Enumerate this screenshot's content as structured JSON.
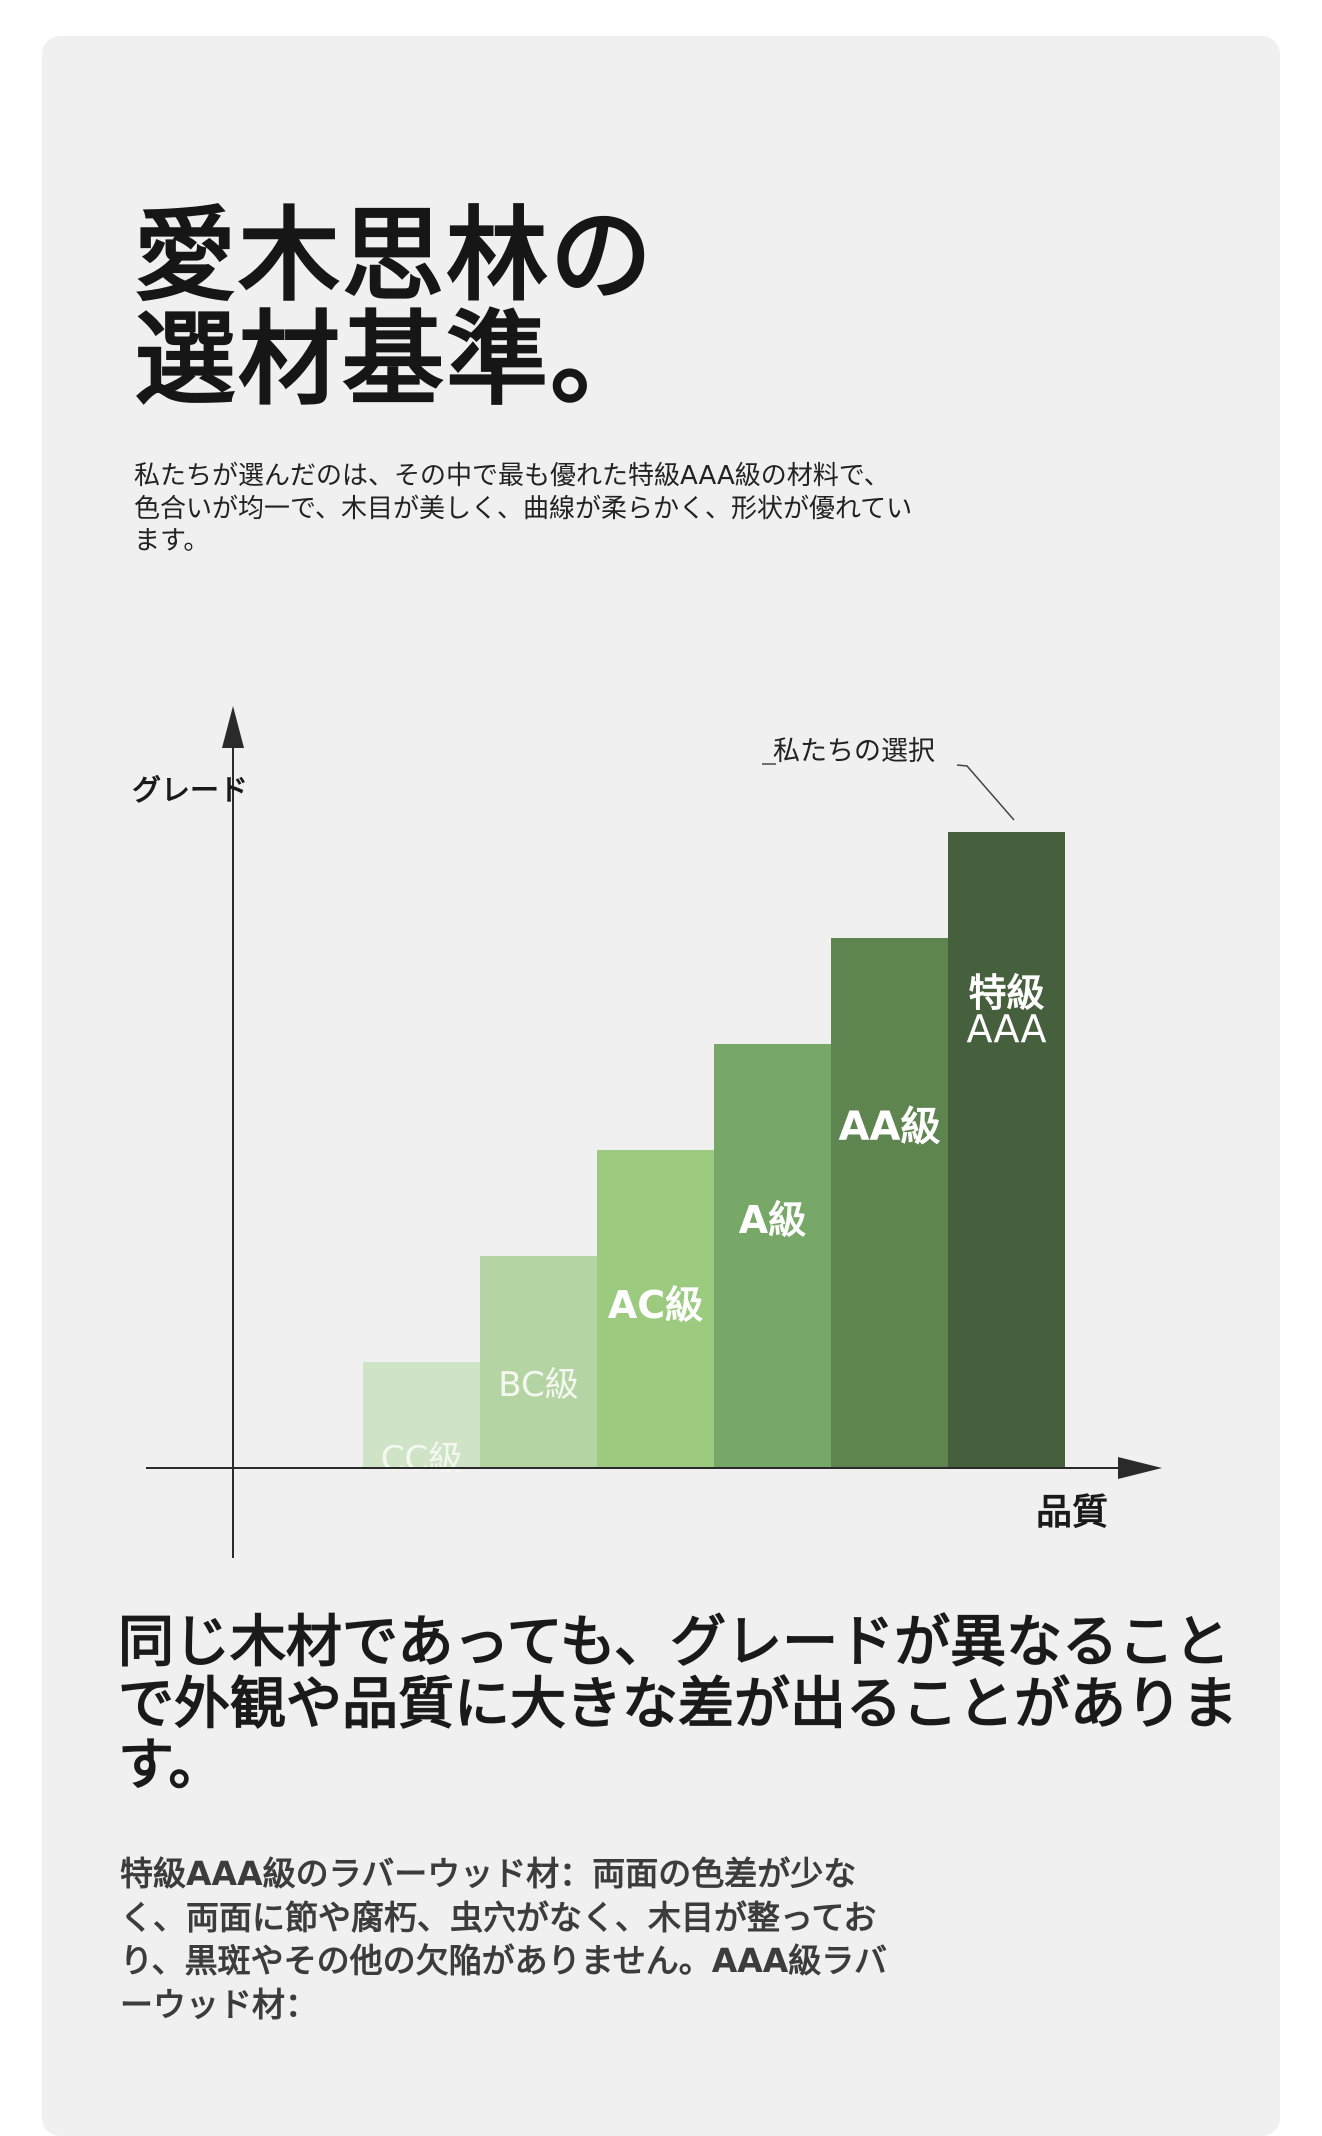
{
  "page": {
    "title_line1": "愛木思林の",
    "title_line2": "選材基準。",
    "intro": "私たちが選んだのは、その中で最も優れた特級AAA級の材料で、色合いが均一で、木目が美しく、曲線が柔らかく、形状が優れています。",
    "heading2": "同じ木材であっても、グレードが異なることで外観や品質に大きな差が出ることがあります。",
    "body2": "特級AAA級のラバーウッド材：両面の色差が少なく、両面に節や腐朽、虫穴がなく、木目が整っており、黒斑やその他の欠陥がありません。AAA級ラバーウッド材："
  },
  "chart_data": {
    "type": "bar",
    "ylabel": "グレード",
    "xlabel": "品質",
    "categories": [
      "CC級",
      "BC級",
      "AC級",
      "A級",
      "AA級",
      "特級AAA"
    ],
    "values": [
      1,
      2,
      3,
      4,
      5,
      6
    ],
    "ylim": [
      0,
      6
    ],
    "annotation": "私たちの選択",
    "bar_colors": [
      "#cfe3c6",
      "#b5d4a4",
      "#9ccb80",
      "#78a867",
      "#5e844f",
      "#465f3d"
    ],
    "label_colors": [
      "#f4f8f0",
      "#f4f8f0",
      "#ffffff",
      "#ffffff",
      "#ffffff",
      "#ffffff"
    ],
    "grid": false,
    "legend": "none"
  }
}
